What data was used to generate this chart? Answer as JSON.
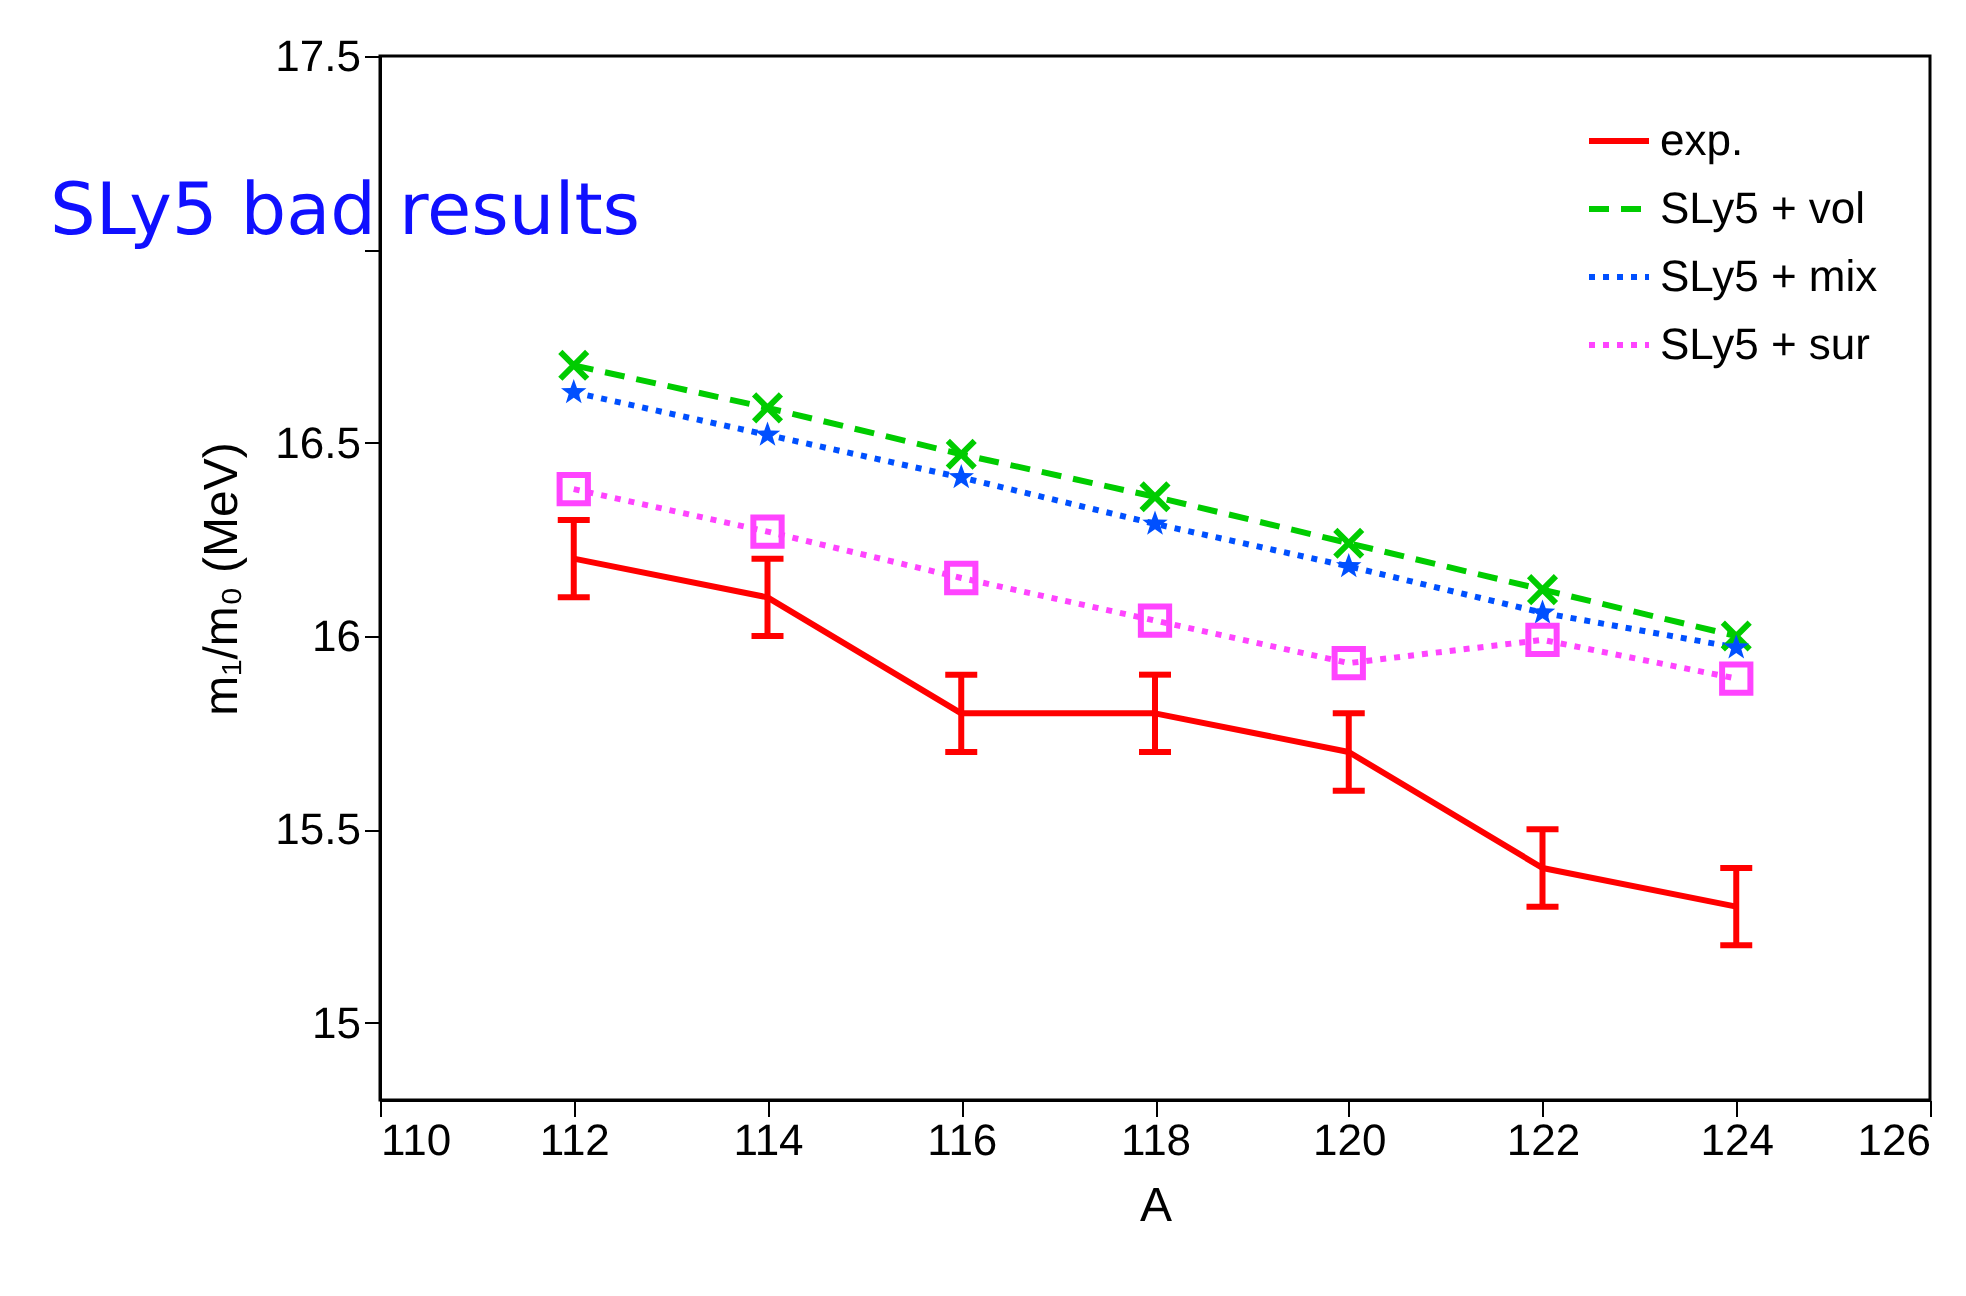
{
  "chart_data": {
    "type": "line",
    "xlabel": "A",
    "ylabel": "m₁/m₀ (MeV)",
    "annotations": [
      "SLy5 bad results"
    ],
    "x": [
      112,
      114,
      116,
      118,
      120,
      122,
      124
    ],
    "xlim": [
      110,
      126
    ],
    "xticks": [
      110,
      112,
      114,
      116,
      118,
      120,
      122,
      124,
      126
    ],
    "ylim": [
      14.8,
      17.5
    ],
    "yticks": [
      15,
      15.5,
      16,
      16.5,
      {
        "value": 17,
        "label": null
      },
      17.5
    ],
    "grid": false,
    "legend": "top right",
    "series": [
      {
        "name": "exp.",
        "color": "#ff0000",
        "line_style": "solid",
        "marker": "none",
        "values": [
          16.2,
          16.1,
          15.8,
          15.8,
          15.7,
          15.4,
          15.3
        ],
        "errors": [
          0.1,
          0.1,
          0.1,
          0.1,
          0.1,
          0.1,
          0.1
        ]
      },
      {
        "name": "SLy5 + vol",
        "color": "#00cc00",
        "line_style": "dashed",
        "marker": "cross",
        "values": [
          16.7,
          16.59,
          16.47,
          16.36,
          16.24,
          16.12,
          16.0
        ]
      },
      {
        "name": "SLy5 + mix",
        "color": "#0050ff",
        "line_style": "dotted",
        "marker": "star",
        "values": [
          16.63,
          16.52,
          16.41,
          16.29,
          16.18,
          16.06,
          15.97
        ]
      },
      {
        "name": "SLy5 + sur",
        "color": "#ff44ff",
        "line_style": "dotted",
        "marker": "square",
        "values": [
          16.38,
          16.27,
          16.15,
          16.04,
          15.93,
          15.99,
          15.89
        ]
      }
    ]
  }
}
